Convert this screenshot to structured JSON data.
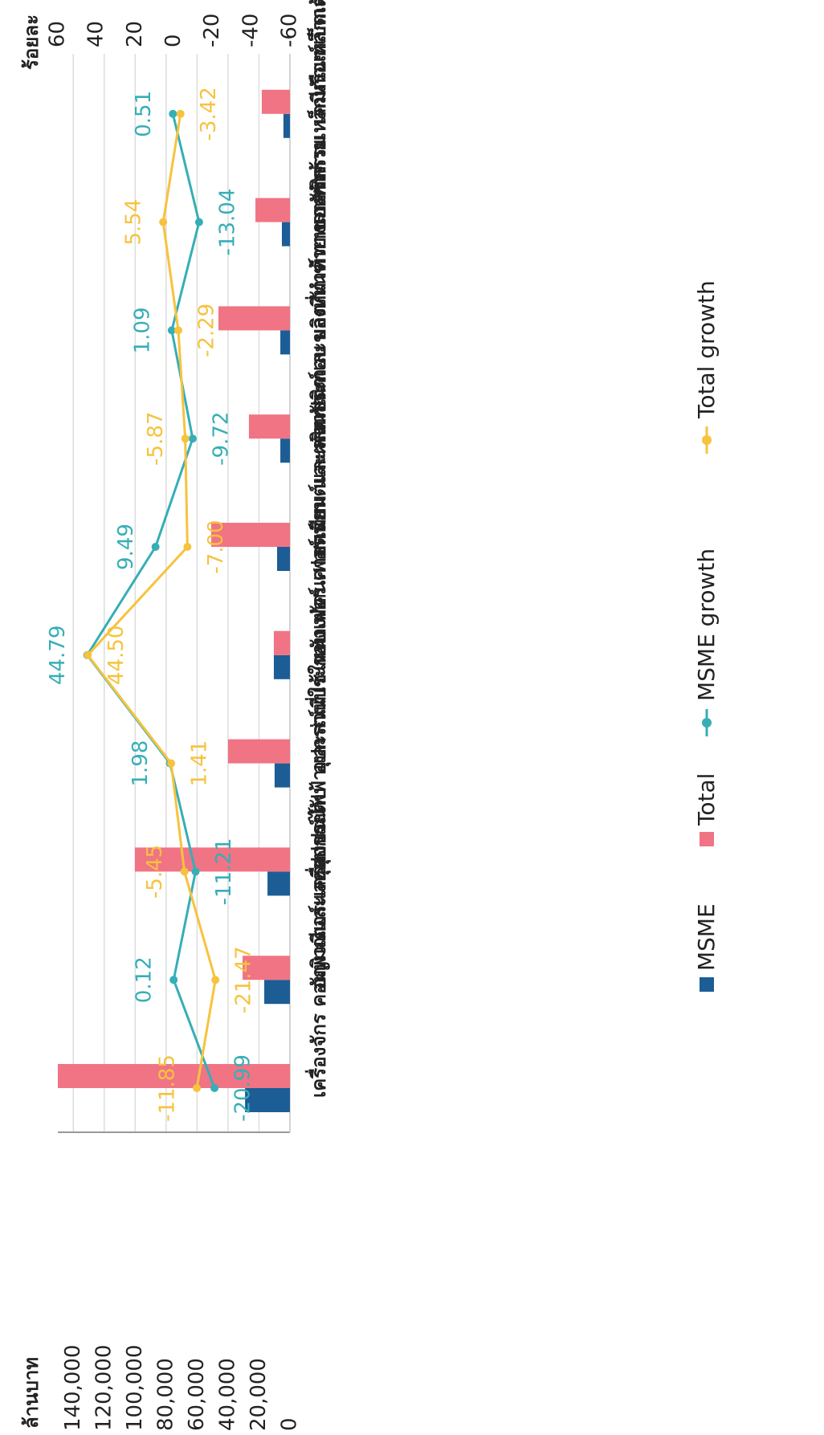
{
  "chart_data": {
    "type": "bar-line",
    "ylabel": "ล้านบาท",
    "y2label": "ร้อยละ",
    "categories": [
      "เครื่องจักร คอมพิวเตอร์และอุปกรณ์",
      "อัญมณีและเครื่องประดับ",
      "อุปกรณ์ไฟฟ้าและส่วนประกอบ",
      "อุปกรณ์ที่ใช้ในทางทัศนศาสตร์",
      "หนังเฟอร์ เฟอร์เทียม และผลิตภัณฑ์",
      "ยานยนต์และส่วนประกอบ",
      "พลาสติกและของที่ทำด้วยพลาสติก",
      "ผลิตภัณฑ์ทางเภสัชกรรม",
      "ของทำด้วยเหล็กหรือเหล็กกล้า",
      "เคมีภัณฑ์เบ็ดเตล็ด"
    ],
    "series": [
      {
        "name": "MSME",
        "type": "bar",
        "color": "#1c5d96",
        "values": [
          29000,
          16600,
          14500,
          9900,
          10400,
          8300,
          6200,
          6200,
          5200,
          4200
        ]
      },
      {
        "name": "Total",
        "type": "bar",
        "color": "#f07484",
        "values": [
          150000,
          30600,
          100200,
          40000,
          10400,
          50900,
          26500,
          46200,
          22300,
          18200
        ]
      },
      {
        "name": "MSME growth",
        "type": "line",
        "axis": "y2",
        "color": "#36aeb7",
        "values": [
          -20.99,
          0.12,
          -11.21,
          1.98,
          44.79,
          9.49,
          -9.72,
          1.09,
          -13.04,
          0.51
        ],
        "value_labels": [
          "-20.99",
          "0.12",
          "-11.21",
          "1.98",
          "44.79",
          "9.49",
          "-9.72",
          "1.09",
          "-13.04",
          "0.51"
        ]
      },
      {
        "name": "Total growth",
        "type": "line",
        "axis": "y2",
        "color": "#f6c33e",
        "values": [
          -11.85,
          -21.47,
          -5.45,
          1.41,
          44.5,
          -7.0,
          -5.87,
          -2.29,
          5.54,
          -3.42
        ],
        "value_labels": [
          "-11.85",
          "-21.47",
          "-5.45",
          "1.41",
          "44.50",
          "-7.00",
          "-5.87",
          "-2.29",
          "5.54",
          "-3.42"
        ]
      }
    ],
    "ylim": [
      0,
      150000
    ],
    "yticks": [
      0,
      {
        "value": 20000,
        "label": "20,000"
      },
      {
        "value": 40000,
        "label": "40,000"
      },
      {
        "value": 60000,
        "label": "60,000"
      },
      {
        "value": 80000,
        "label": "80,000"
      },
      {
        "value": 100000,
        "label": "100,000"
      },
      {
        "value": 120000,
        "label": "120,000"
      },
      {
        "value": 140000,
        "label": "140,000"
      }
    ],
    "y2lim": [
      -60,
      60
    ],
    "y2ticks": [
      -60,
      -40,
      -20,
      0,
      20,
      40,
      60
    ],
    "grid": true
  }
}
